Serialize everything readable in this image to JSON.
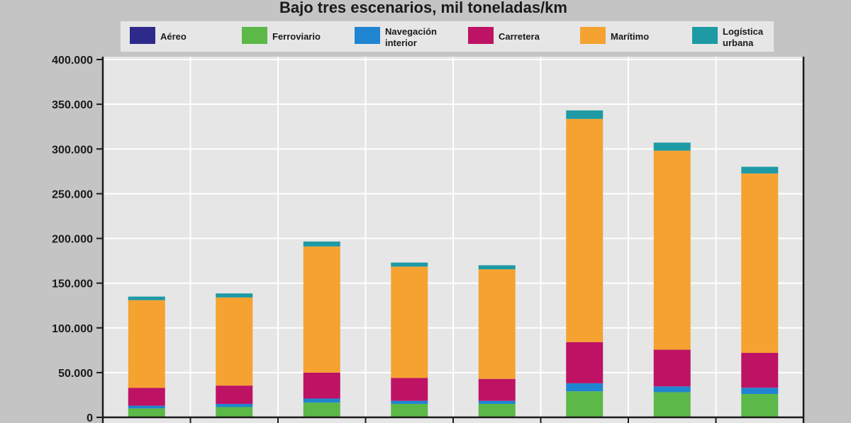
{
  "chart_data": {
    "type": "bar",
    "stacked": true,
    "title": "Bajo tres escenarios, mil toneladas/km",
    "xlabel": "",
    "ylabel": "",
    "ylim": [
      0,
      400000
    ],
    "yticks": [
      0,
      50000,
      100000,
      150000,
      200000,
      250000,
      300000,
      350000,
      400000
    ],
    "ytick_labels": [
      "0",
      "50.000",
      "100.000",
      "150.000",
      "200.000",
      "250.000",
      "300.000",
      "350.000",
      "400.000"
    ],
    "grid": true,
    "legend_position": "top",
    "categories": [
      "",
      "",
      "",
      "",
      "",
      "",
      "",
      ""
    ],
    "series": [
      {
        "name": "Aéreo",
        "color": "#2e2a8c",
        "values": [
          500,
          500,
          500,
          500,
          500,
          600,
          600,
          600
        ]
      },
      {
        "name": "Ferroviario",
        "color": "#5cb847",
        "values": [
          9500,
          11000,
          16000,
          14500,
          14500,
          28500,
          27500,
          25500
        ]
      },
      {
        "name": "Navegación interior",
        "color": "#1f85d0",
        "values": [
          3000,
          3500,
          4500,
          3500,
          3500,
          9000,
          6500,
          7000
        ]
      },
      {
        "name": "Carretera",
        "color": "#be1265",
        "values": [
          20000,
          20500,
          29000,
          25500,
          24500,
          46000,
          41000,
          39000
        ]
      },
      {
        "name": "Marítimo",
        "color": "#f5a231",
        "values": [
          98000,
          98500,
          141000,
          124500,
          122500,
          249500,
          222500,
          200500
        ]
      },
      {
        "name": "Logística urbana",
        "color": "#1e9aa5",
        "values": [
          4000,
          4500,
          5500,
          4500,
          4500,
          9500,
          9000,
          7500
        ]
      }
    ]
  },
  "legend": {
    "entries": [
      {
        "lines": [
          "Aéreo"
        ]
      },
      {
        "lines": [
          "Ferroviario"
        ]
      },
      {
        "lines": [
          "Navegación",
          "interior"
        ]
      },
      {
        "lines": [
          "Carretera"
        ]
      },
      {
        "lines": [
          "Marítimo"
        ]
      },
      {
        "lines": [
          "Logística",
          "urbana"
        ]
      }
    ]
  },
  "colors": {
    "page_background": "#c4c4c4",
    "plot_background": "#e6e6e6",
    "gridline": "#ffffff",
    "legend_background": "#e6e6e6",
    "axis": "#1a1a1a"
  }
}
